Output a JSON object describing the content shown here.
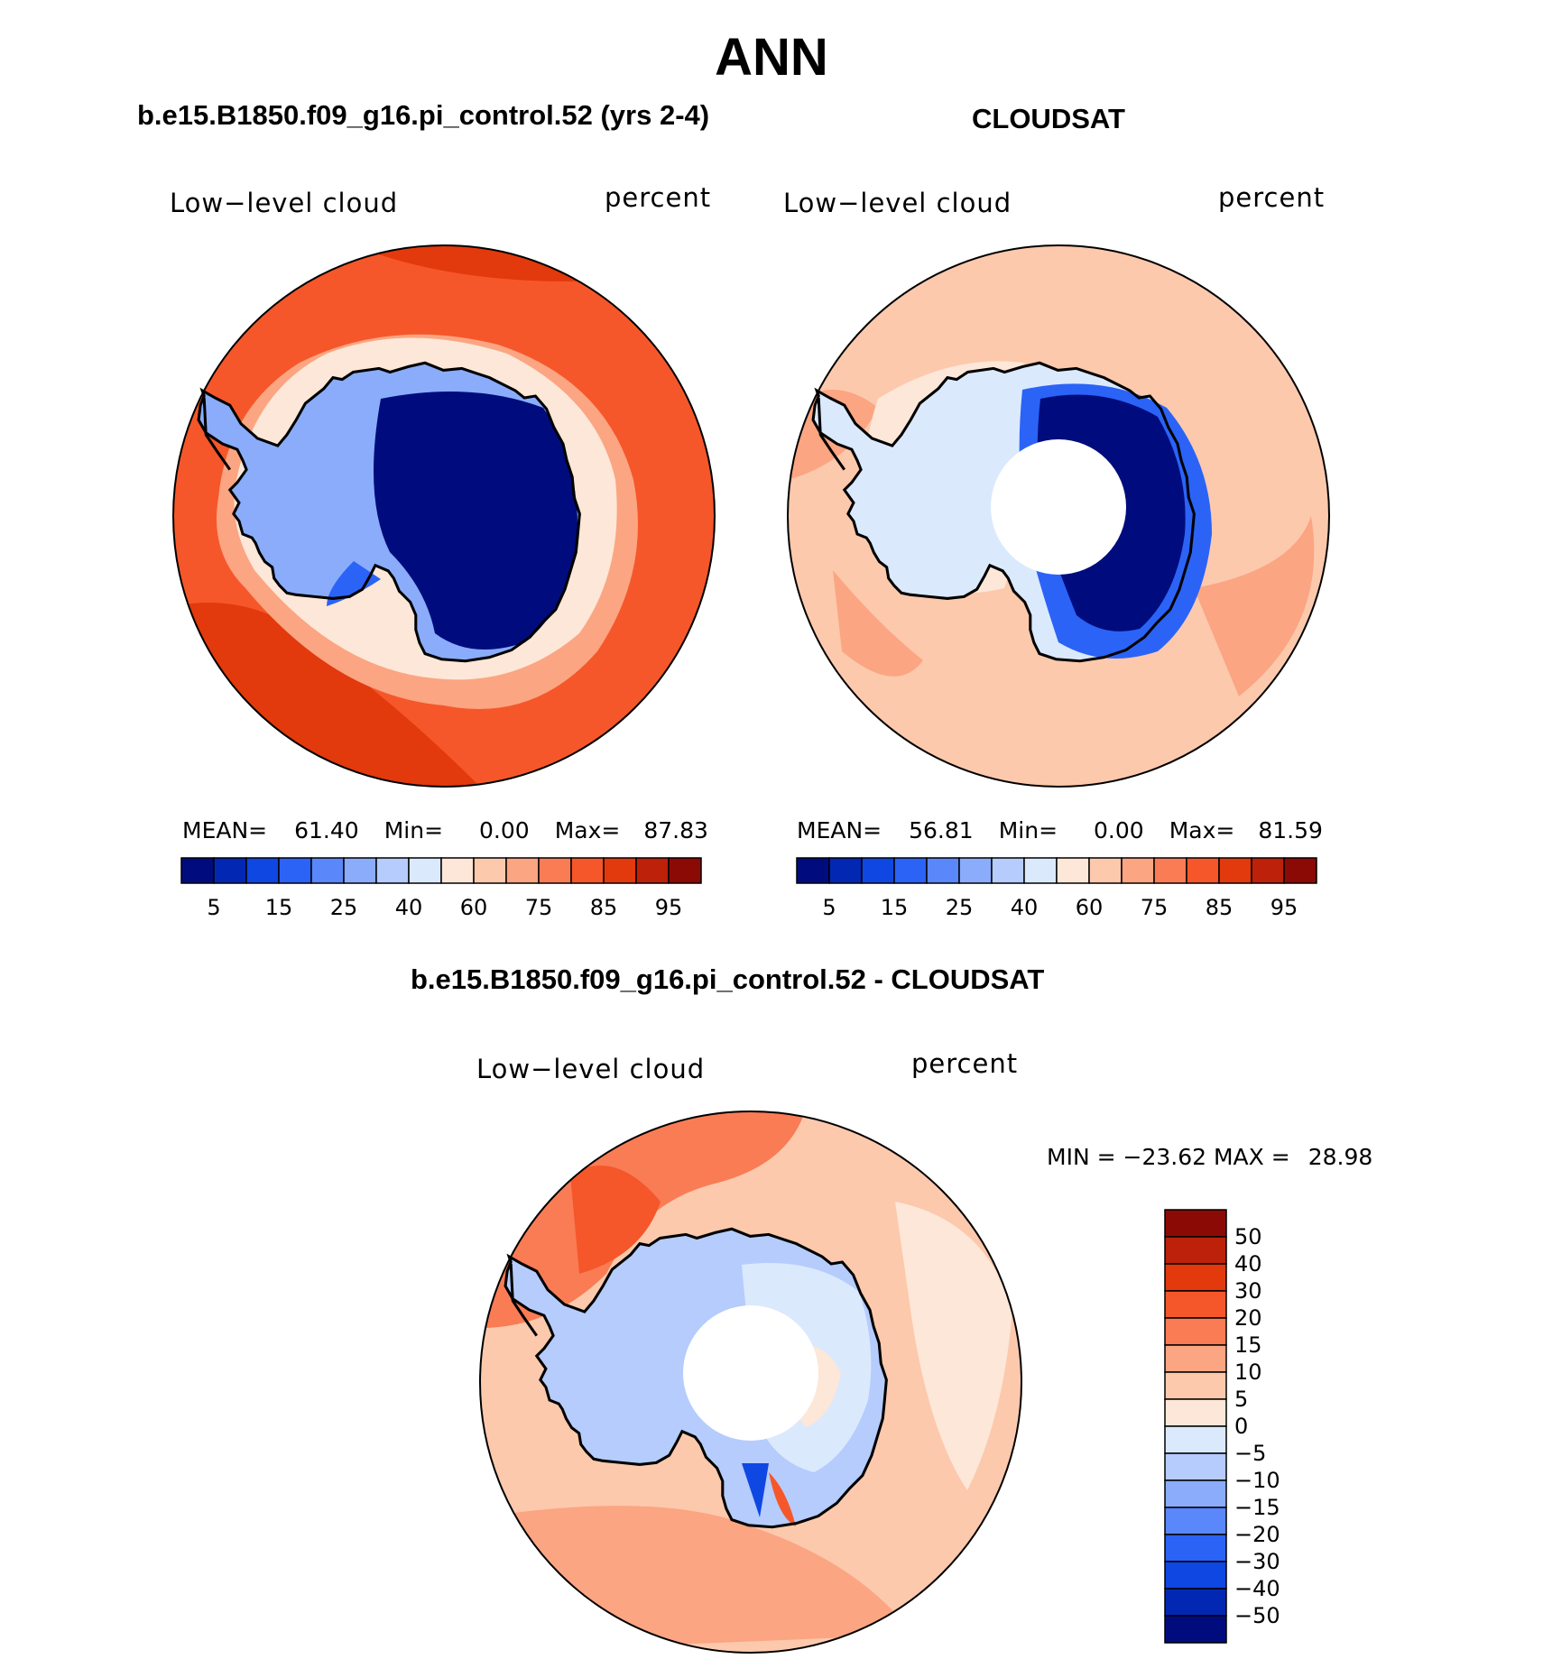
{
  "title": "ANN",
  "colors": {
    "abs_scale": [
      "#000c7d",
      "#0228b3",
      "#0f47e3",
      "#2b63f7",
      "#5a87f9",
      "#8aacfb",
      "#b5ccfd",
      "#dbe9fd",
      "#fde7d8",
      "#fcc9ad",
      "#fba582",
      "#f97c55",
      "#f5572a",
      "#e2390d",
      "#bd210a",
      "#8c0a06"
    ],
    "diff_scale": [
      "#8c0a06",
      "#bd210a",
      "#e2390d",
      "#f5572a",
      "#f97c55",
      "#fba582",
      "#fcc9ad",
      "#fde7d8",
      "#dbe9fd",
      "#b5ccfd",
      "#8aacfb",
      "#5a87f9",
      "#2b63f7",
      "#0f47e3",
      "#0228b3",
      "#000c7d"
    ]
  },
  "panels": [
    {
      "title": "b.e15.B1850.f09_g16.pi_control.52 (yrs 2-4)",
      "field": "Low−level cloud",
      "units": "percent",
      "stats": {
        "mean_label": "MEAN=",
        "mean": "61.40",
        "min_label": "Min=",
        "min": "0.00",
        "max_label": "Max=",
        "max": "87.83"
      },
      "ticks": [
        "5",
        "15",
        "25",
        "40",
        "60",
        "75",
        "85",
        "95"
      ]
    },
    {
      "title": "CLOUDSAT",
      "field": "Low−level cloud",
      "units": "percent",
      "stats": {
        "mean_label": "MEAN=",
        "mean": "56.81",
        "min_label": "Min=",
        "min": "0.00",
        "max_label": "Max=",
        "max": "81.59"
      },
      "ticks": [
        "5",
        "15",
        "25",
        "40",
        "60",
        "75",
        "85",
        "95"
      ]
    },
    {
      "title": "b.e15.B1850.f09_g16.pi_control.52 - CLOUDSAT",
      "field": "Low−level cloud",
      "units": "percent",
      "stats": {
        "min_label": "MIN =",
        "min": "−23.62",
        "max_label": "MAX =",
        "max": "28.98"
      },
      "ticks": [
        "50",
        "40",
        "30",
        "20",
        "15",
        "10",
        "5",
        "0",
        "−5",
        "−10",
        "−15",
        "−20",
        "−30",
        "−40",
        "−50"
      ]
    }
  ]
}
